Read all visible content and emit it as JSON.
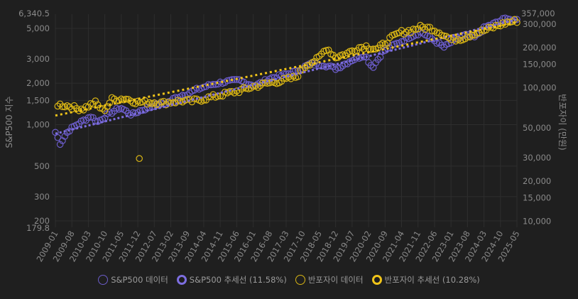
{
  "chart_data": {
    "type": "scatter",
    "x_ticks": [
      "2009-01",
      "2009-08",
      "2010-03",
      "2010-10",
      "2011-05",
      "2011-12",
      "2012-07",
      "2013-02",
      "2013-09",
      "2014-04",
      "2014-11",
      "2015-06",
      "2016-01",
      "2016-08",
      "2017-03",
      "2017-10",
      "2018-05",
      "2018-12",
      "2019-07",
      "2020-02",
      "2020-09",
      "2021-04",
      "2021-11",
      "2022-06",
      "2023-01",
      "2023-08",
      "2024-03",
      "2024-10",
      "2025-05"
    ],
    "x_range": [
      "2009-01",
      "2025-05"
    ],
    "left_axis": {
      "label": "S&P500 지수",
      "scale": "log",
      "range": [
        179.8,
        6340.5
      ],
      "ticks": [
        200,
        300,
        500,
        1000,
        1500,
        2000,
        3000,
        5000
      ],
      "tick_labels": [
        "200",
        "300",
        "500",
        "1,000",
        "1,500",
        "2,000",
        "3,000",
        "5,000"
      ],
      "min_label": "179.8",
      "max_label": "6,340.5"
    },
    "right_axis": {
      "label": "반포자이 (만원)",
      "scale": "log",
      "range": [
        9000,
        357000
      ],
      "ticks": [
        10000,
        15000,
        20000,
        30000,
        50000,
        100000,
        150000,
        200000,
        300000
      ],
      "tick_labels": [
        "10,000",
        "15,000",
        "20,000",
        "30,000",
        "50,000",
        "100,000",
        "150,000",
        "200,000",
        "300,000"
      ],
      "max_label": "357,000"
    },
    "series": [
      {
        "name": "S&P500 데이터",
        "axis": "left",
        "color": "#6b5cc9",
        "anchors": [
          [
            2009.0,
            880
          ],
          [
            2009.17,
            730
          ],
          [
            2009.45,
            900
          ],
          [
            2009.75,
            1000
          ],
          [
            2010.25,
            1150
          ],
          [
            2010.5,
            1050
          ],
          [
            2010.9,
            1200
          ],
          [
            2011.3,
            1330
          ],
          [
            2011.7,
            1180
          ],
          [
            2011.95,
            1250
          ],
          [
            2012.5,
            1380
          ],
          [
            2012.9,
            1420
          ],
          [
            2013.3,
            1590
          ],
          [
            2013.7,
            1690
          ],
          [
            2014.0,
            1800
          ],
          [
            2014.5,
            1950
          ],
          [
            2015.0,
            2050
          ],
          [
            2015.5,
            2100
          ],
          [
            2015.8,
            1980
          ],
          [
            2016.1,
            1930
          ],
          [
            2016.6,
            2170
          ],
          [
            2017.0,
            2270
          ],
          [
            2017.5,
            2430
          ],
          [
            2018.0,
            2750
          ],
          [
            2018.5,
            2720
          ],
          [
            2018.95,
            2550
          ],
          [
            2019.5,
            2950
          ],
          [
            2019.95,
            3200
          ],
          [
            2020.22,
            2600
          ],
          [
            2020.6,
            3400
          ],
          [
            2021.0,
            3800
          ],
          [
            2021.5,
            4300
          ],
          [
            2021.95,
            4700
          ],
          [
            2022.4,
            4100
          ],
          [
            2022.75,
            3650
          ],
          [
            2023.0,
            3950
          ],
          [
            2023.5,
            4450
          ],
          [
            2023.85,
            4300
          ],
          [
            2024.2,
            5100
          ],
          [
            2024.6,
            5500
          ],
          [
            2025.0,
            6000
          ],
          [
            2025.25,
            5600
          ],
          [
            2025.4,
            5900
          ]
        ],
        "trend_label": "S&P500 추세선 (11.58%)",
        "trend_rate": 11.58,
        "trend_start": 860,
        "trend_end": 5800
      },
      {
        "name": "반포자이 데이터",
        "axis": "right",
        "color": "#d9b514",
        "anchors": [
          [
            2009.1,
            75000
          ],
          [
            2009.5,
            73000
          ],
          [
            2009.75,
            70000
          ],
          [
            2010.0,
            70000
          ],
          [
            2010.4,
            78000
          ],
          [
            2010.7,
            67000
          ],
          [
            2011.0,
            82000
          ],
          [
            2011.5,
            83000
          ],
          [
            2011.9,
            78000
          ],
          [
            2012.5,
            78000
          ],
          [
            2012.8,
            77000
          ],
          [
            2013.5,
            80000
          ],
          [
            2013.8,
            79000
          ],
          [
            2014.5,
            85000
          ],
          [
            2015.0,
            90000
          ],
          [
            2015.5,
            95000
          ],
          [
            2016.0,
            102000
          ],
          [
            2016.5,
            108000
          ],
          [
            2017.0,
            113000
          ],
          [
            2017.5,
            120000
          ],
          [
            2017.9,
            150000
          ],
          [
            2018.3,
            165000
          ],
          [
            2018.6,
            200000
          ],
          [
            2018.9,
            170000
          ],
          [
            2019.3,
            180000
          ],
          [
            2019.7,
            200000
          ],
          [
            2020.0,
            205000
          ],
          [
            2020.4,
            195000
          ],
          [
            2020.8,
            230000
          ],
          [
            2021.2,
            260000
          ],
          [
            2021.6,
            270000
          ],
          [
            2021.9,
            285000
          ],
          [
            2022.3,
            280000
          ],
          [
            2022.7,
            255000
          ],
          [
            2023.0,
            230000
          ],
          [
            2023.4,
            235000
          ],
          [
            2023.8,
            255000
          ],
          [
            2024.2,
            270000
          ],
          [
            2024.6,
            290000
          ],
          [
            2025.0,
            310000
          ],
          [
            2025.35,
            320000
          ]
        ],
        "outlier": [
          2011.97,
          29500
        ],
        "trend_label": "반포자이 추세선 (10.28%)",
        "trend_rate": 10.28,
        "trend_start": 62000,
        "trend_end": 310000
      }
    ]
  },
  "legend": {
    "sp_data": "S&P500 데이터",
    "sp_trend": "S&P500 추세선 (11.58%)",
    "bz_data": "반포자이 데이터",
    "bz_trend": "반포자이 추세선 (10.28%)"
  }
}
